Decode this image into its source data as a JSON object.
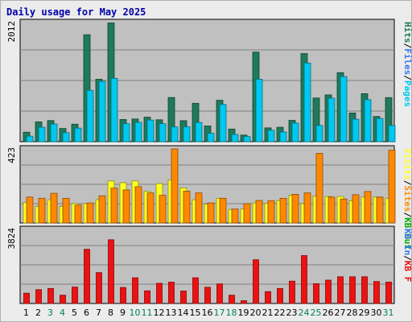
{
  "chart_data": {
    "type": "bar",
    "title": "Daily usage for May 2025",
    "categories": [
      "1",
      "2",
      "3",
      "4",
      "5",
      "6",
      "7",
      "8",
      "9",
      "10",
      "11",
      "12",
      "13",
      "14",
      "15",
      "16",
      "17",
      "18",
      "19",
      "20",
      "21",
      "22",
      "23",
      "24",
      "25",
      "26",
      "27",
      "28",
      "29",
      "30",
      "31"
    ],
    "weekend_days": [
      "3",
      "4",
      "10",
      "11",
      "17",
      "18",
      "24",
      "25",
      "31"
    ],
    "colors": {
      "hits": "#1e7a5a",
      "files": "#00c8f0",
      "pages": "#00c8f0",
      "visits": "#ffff22",
      "sites": "#ff8800",
      "kbin": "#3377ee",
      "kbout": "#00aa00",
      "kbf": "#ee1111",
      "weekday_label": "#000000",
      "weekend_label": "#008060",
      "plot_bg": "#c0c0c0"
    },
    "panels": [
      {
        "ymax_label": "2012",
        "ylim": [
          0,
          2012
        ],
        "legend": [
          {
            "text": "Hits",
            "color": "#1e7a5a"
          },
          {
            "sep": "/"
          },
          {
            "text": "Files",
            "color": "#3377ee"
          },
          {
            "sep": "/"
          },
          {
            "text": "Pages",
            "color": "#00c8f0"
          }
        ],
        "series": [
          {
            "key": "hits",
            "values": [
              158,
              330,
              352,
              220,
              292,
              1782,
              1040,
              1978,
              370,
              378,
              408,
              365,
              736,
              350,
              640,
              262,
              690,
              210,
              110,
              1492,
              230,
              240,
              355,
              1468,
              728,
              780,
              1150,
              478,
              800,
              420,
              734
            ]
          },
          {
            "key": "files",
            "values": [
              92,
              240,
              294,
              150,
              226,
              855,
              1006,
              1055,
              300,
              322,
              360,
              300,
              246,
              248,
              320,
              140,
              620,
              120,
              85,
              1040,
              190,
              162,
              310,
              1310,
              270,
              725,
              1085,
              375,
              700,
              386,
              270
            ]
          }
        ]
      },
      {
        "ymax_label": "423",
        "ylim": [
          0,
          423
        ],
        "legend": [
          {
            "text": "Visits",
            "color": "#ffff22"
          },
          {
            "sep": "/"
          },
          {
            "text": "Sites",
            "color": "#ff8800"
          },
          {
            "sep": "/"
          },
          {
            "text": "KB Out",
            "color": "#00aa00"
          }
        ],
        "series": [
          {
            "key": "visits",
            "values": [
              115,
              92,
              130,
              92,
              108,
              108,
              130,
              235,
              225,
              235,
              176,
              220,
              240,
              196,
              130,
              106,
              138,
              76,
              78,
              112,
              110,
              125,
              155,
              108,
              150,
              148,
              148,
              124,
              145,
              145,
              138
            ]
          },
          {
            "key": "sites",
            "values": [
              145,
              138,
              166,
              138,
              100,
              112,
              152,
              195,
              185,
              203,
              168,
              155,
              414,
              178,
              168,
              112,
              138,
              78,
              108,
              126,
              125,
              138,
              160,
              168,
              389,
              145,
              134,
              158,
              176,
              145,
              407
            ]
          }
        ]
      },
      {
        "ymax_label": "3824",
        "ylim": [
          0,
          3824
        ],
        "legend": [
          {
            "text": "KB In",
            "color": "#3377ee"
          },
          {
            "sep": "/"
          },
          {
            "text": "KB F",
            "color": "#ee1111"
          }
        ],
        "series": [
          {
            "key": "kbf",
            "values": [
              520,
              700,
              760,
              420,
              830,
              2740,
              1560,
              3220,
              810,
              1300,
              640,
              1020,
              1080,
              630,
              1300,
              820,
              990,
              420,
              140,
              2210,
              600,
              760,
              1130,
              2420,
              1000,
              1180,
              1350,
              1350,
              1350,
              1110,
              1080
            ]
          }
        ]
      }
    ]
  }
}
